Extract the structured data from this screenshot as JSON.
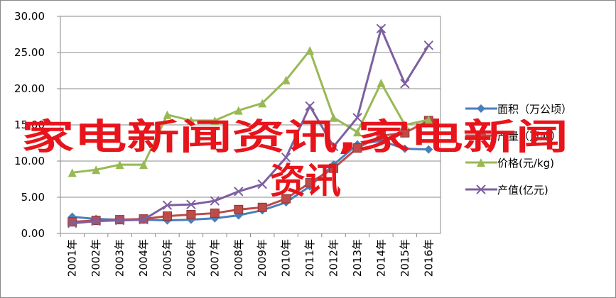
{
  "chart_data": {
    "type": "line",
    "categories": [
      "2001年",
      "2002年",
      "2003年",
      "2004年",
      "2005年",
      "2006年",
      "2007年",
      "2008年",
      "2009年",
      "2010年",
      "2011年",
      "2012年",
      "2013年",
      "2014年",
      "2015年",
      "2016年"
    ],
    "series": [
      {
        "name": "面积（万公顷）",
        "color": "#4a7ebb",
        "marker": "diamond",
        "values": [
          2.3,
          2.0,
          1.9,
          1.9,
          1.8,
          1.9,
          2.1,
          2.5,
          3.2,
          4.3,
          6.5,
          9.5,
          12.3,
          12.8,
          11.7,
          11.6
        ]
      },
      {
        "name": "产量（万吨）",
        "color": "#be4b48",
        "marker": "square",
        "values": [
          1.6,
          1.8,
          1.9,
          2.0,
          2.4,
          2.6,
          2.8,
          3.3,
          3.6,
          4.8,
          7.0,
          9.0,
          11.8,
          13.5,
          13.9,
          15.6
        ]
      },
      {
        "name": "价格(元/kg)",
        "color": "#98b954",
        "marker": "triangle",
        "values": [
          8.4,
          8.8,
          9.5,
          9.5,
          16.4,
          15.6,
          15.6,
          17.0,
          18.0,
          21.2,
          25.3,
          16.0,
          14.0,
          20.8,
          15.0,
          15.7
        ]
      },
      {
        "name": "产值(亿元)",
        "color": "#7d60a0",
        "marker": "x",
        "values": [
          1.4,
          1.7,
          1.8,
          1.9,
          3.9,
          4.0,
          4.5,
          5.8,
          6.8,
          10.5,
          17.6,
          12.0,
          16.0,
          28.3,
          20.7,
          26.0
        ]
      }
    ],
    "ylim": [
      0,
      30
    ],
    "yticks": [
      {
        "value": 0,
        "label": "0.00"
      },
      {
        "value": 5,
        "label": "5.00"
      },
      {
        "value": 10,
        "label": "10.00"
      },
      {
        "value": 15,
        "label": "15.00"
      },
      {
        "value": 20,
        "label": "20.00"
      },
      {
        "value": 25,
        "label": "25.00"
      },
      {
        "value": 30,
        "label": "30.00"
      }
    ],
    "grid": true,
    "legend": "right",
    "annotations": [
      "家电新闻资讯,家电新闻",
      "资讯"
    ]
  }
}
